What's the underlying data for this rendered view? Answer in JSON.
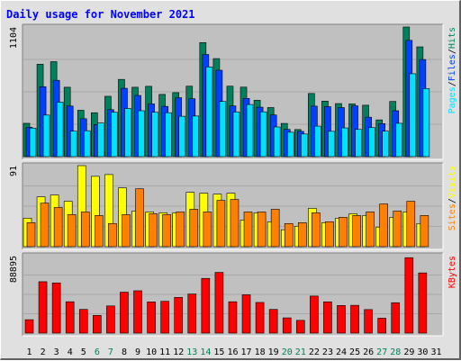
{
  "chart_data": {
    "type": "bar",
    "title": "Daily usage for November 2021",
    "colors": {
      "background": "#e0e0e0",
      "plot_bg": "#c0c0c0",
      "title": "#0000ff",
      "hits": "#00805c",
      "files": "#0040ff",
      "pages": "#00e0ff",
      "visits": "#ffff00",
      "sites": "#ff8000",
      "kbytes": "#ff0000",
      "weekend_label": "#00805c",
      "weekday_label": "#000000"
    },
    "categories": [
      "1",
      "2",
      "3",
      "4",
      "5",
      "6",
      "7",
      "8",
      "9",
      "10",
      "11",
      "12",
      "13",
      "14",
      "15",
      "16",
      "17",
      "18",
      "19",
      "20",
      "21",
      "22",
      "23",
      "24",
      "25",
      "26",
      "27",
      "28",
      "29",
      "30",
      "31"
    ],
    "weekend_days": [
      "6",
      "7",
      "13",
      "14",
      "20",
      "21",
      "27",
      "28"
    ],
    "panels": [
      {
        "name": "hits-files-pages",
        "ylabel": "1104",
        "ymax": 1104,
        "legend": [
          {
            "text": "Pages",
            "color": "#00e0ff"
          },
          {
            "text": "/",
            "color": "#000000"
          },
          {
            "text": "Files",
            "color": "#0040ff"
          },
          {
            "text": "/",
            "color": "#000000"
          },
          {
            "text": "Hits",
            "color": "#00805c"
          }
        ],
        "series": [
          {
            "name": "Hits",
            "color": "#00805c",
            "values": [
              284,
              787,
              809,
              591,
              395,
              374,
              514,
              658,
              591,
              599,
              530,
              545,
              600,
              971,
              835,
              600,
              592,
              480,
              418,
              283,
              231,
              538,
              473,
              452,
              449,
              438,
              313,
              470,
              1104,
              935,
              0
            ]
          },
          {
            "name": "Files",
            "color": "#0040ff",
            "values": [
              251,
              596,
              650,
              431,
              323,
              272,
              400,
              582,
              521,
              449,
              428,
              502,
              493,
              870,
              736,
              432,
              496,
              421,
              355,
              232,
              215,
              430,
              426,
              418,
              433,
              336,
              281,
              391,
              990,
              827,
              0
            ]
          },
          {
            "name": "Pages",
            "color": "#00e0ff",
            "values": [
              243,
              354,
              464,
              217,
              221,
              287,
              379,
              410,
              391,
              378,
              374,
              344,
              346,
              764,
              470,
              380,
              444,
              382,
              253,
              208,
              193,
              260,
              216,
              245,
              232,
              248,
              217,
              284,
              706,
              580,
              0
            ]
          }
        ]
      },
      {
        "name": "visits-sites",
        "ylabel": "91",
        "ymax": 91,
        "legend": [
          {
            "text": "Sites",
            "color": "#ff8000"
          },
          {
            "text": "/",
            "color": "#000000"
          },
          {
            "text": "Visits",
            "color": "#ffff00"
          }
        ],
        "series": [
          {
            "name": "Visits",
            "color": "#ffff00",
            "values": [
              32,
              56,
              58,
              51,
              91,
              79,
              81,
              66,
              40,
              39,
              38,
              38,
              61,
              60,
              59,
              60,
              30,
              38,
              28,
              19,
              23,
              43,
              27,
              32,
              37,
              35,
              22,
              33,
              39,
              26,
              0
            ]
          },
          {
            "name": "Sites",
            "color": "#ff8000",
            "values": [
              27,
              49,
              44,
              36,
              39,
              35,
              26,
              36,
              65,
              37,
              36,
              39,
              42,
              39,
              52,
              53,
              39,
              39,
              42,
              26,
              27,
              38,
              28,
              33,
              35,
              39,
              48,
              40,
              51,
              35,
              0
            ]
          }
        ]
      },
      {
        "name": "kbytes",
        "ylabel": "88895",
        "ymax": 88895,
        "legend": [
          {
            "text": "KBytes",
            "color": "#ff0000"
          }
        ],
        "series": [
          {
            "name": "KBytes",
            "color": "#ff0000",
            "values": [
              15400,
              59000,
              57600,
              36000,
              27200,
              20300,
              31200,
              47000,
              48600,
              35800,
              36500,
              41000,
              44900,
              62800,
              69700,
              36000,
              44000,
              35200,
              27200,
              17500,
              14600,
              42500,
              35900,
              31700,
              31900,
              27000,
              17100,
              34900,
              86600,
              69100,
              0
            ]
          }
        ]
      }
    ]
  }
}
